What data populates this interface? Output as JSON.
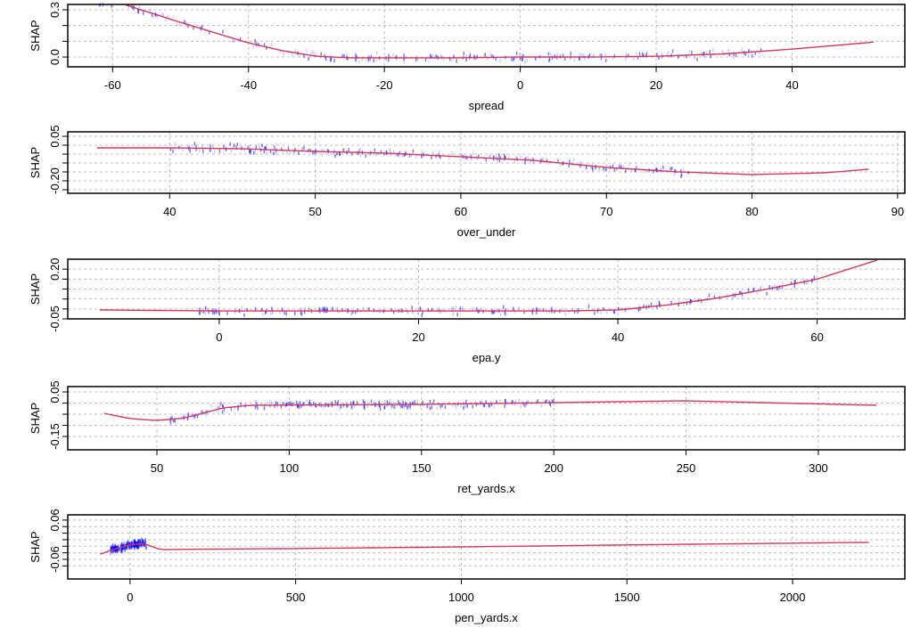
{
  "chart_data": [
    {
      "type": "scatter",
      "xlabel": "spread",
      "ylabel": "SHAP",
      "xlim": [
        -66.6,
        56.6
      ],
      "ylim": [
        -0.062,
        0.334
      ],
      "xticks": [
        -60,
        -40,
        -20,
        0,
        20,
        40
      ],
      "yticks": [
        0.0,
        0.1,
        0.2,
        0.3
      ],
      "ytick_labels": [
        {
          "v": 0.0,
          "t": "0.0"
        },
        {
          "v": 0.3,
          "t": "0.3"
        }
      ],
      "grid": true,
      "scatter_x_range": [
        -62,
        36
      ],
      "smooth": {
        "x": [
          -58,
          -50,
          -40,
          -35,
          -30,
          -25,
          -20,
          -10,
          0,
          10,
          20,
          30,
          40,
          52
        ],
        "y": [
          0.33,
          0.22,
          0.09,
          0.04,
          0.005,
          -0.005,
          -0.005,
          -0.005,
          0.0,
          0.0,
          0.005,
          0.02,
          0.05,
          0.095
        ]
      }
    },
    {
      "type": "scatter",
      "xlabel": "over_under",
      "ylabel": "SHAP",
      "xlim": [
        33.0,
        90.5
      ],
      "ylim": [
        -0.27,
        0.075
      ],
      "xticks": [
        40,
        50,
        60,
        70,
        80,
        90
      ],
      "yticks": [
        0.05,
        0.0,
        -0.05,
        -0.1,
        -0.15,
        -0.2,
        -0.25
      ],
      "ytick_labels": [
        {
          "v": 0.05,
          "t": "0.05"
        },
        {
          "v": -0.2,
          "t": "-0.20"
        }
      ],
      "grid": true,
      "scatter_x_range": [
        40,
        76
      ],
      "smooth": {
        "x": [
          35,
          40,
          45,
          50,
          55,
          60,
          65,
          70,
          75,
          80,
          85,
          88
        ],
        "y": [
          -0.015,
          -0.015,
          -0.02,
          -0.035,
          -0.045,
          -0.065,
          -0.085,
          -0.125,
          -0.15,
          -0.165,
          -0.155,
          -0.135
        ]
      }
    },
    {
      "type": "scatter",
      "xlabel": "epa.y",
      "ylabel": "SHAP",
      "xlim": [
        -15.2,
        68.8
      ],
      "ylim": [
        -0.05,
        0.25
      ],
      "xticks": [
        0,
        20,
        40,
        60
      ],
      "yticks": [
        0.2,
        0.15,
        0.1,
        0.05,
        0.0,
        -0.05
      ],
      "ytick_labels": [
        {
          "v": 0.2,
          "t": "0.20"
        },
        {
          "v": -0.05,
          "t": "-0.05"
        }
      ],
      "grid": true,
      "scatter_x_range": [
        -2,
        60
      ],
      "smooth": {
        "x": [
          -12,
          0,
          20,
          35,
          40,
          45,
          50,
          55,
          60,
          66
        ],
        "y": [
          -0.005,
          -0.01,
          -0.01,
          -0.01,
          -0.005,
          0.02,
          0.055,
          0.1,
          0.15,
          0.245
        ]
      }
    },
    {
      "type": "scatter",
      "xlabel": "ret_yards.x",
      "ylabel": "SHAP",
      "xlim": [
        16.3,
        332.7
      ],
      "ylim": [
        -0.21,
        0.074
      ],
      "xticks": [
        50,
        100,
        150,
        200,
        250,
        300
      ],
      "yticks": [
        0.05,
        0.0,
        -0.05,
        -0.1,
        -0.15
      ],
      "ytick_labels": [
        {
          "v": 0.05,
          "t": "0.05"
        },
        {
          "v": -0.15,
          "t": "-0.15"
        }
      ],
      "grid": true,
      "scatter_x_range": [
        55,
        200
      ],
      "smooth": {
        "x": [
          30,
          40,
          50,
          60,
          75,
          85,
          150,
          250,
          322
        ],
        "y": [
          -0.046,
          -0.07,
          -0.078,
          -0.068,
          -0.022,
          -0.01,
          -0.006,
          0.01,
          -0.01
        ]
      }
    },
    {
      "type": "scatter",
      "xlabel": "pen_yards.x",
      "ylabel": "SHAP",
      "xlim": [
        -188,
        2339
      ],
      "ylim": [
        -0.12,
        0.076
      ],
      "xticks": [
        0,
        500,
        1000,
        1500,
        2000
      ],
      "yticks": [
        0.06,
        0.04,
        0.02,
        0.0,
        -0.02,
        -0.04,
        -0.06,
        -0.08
      ],
      "ytick_labels": [
        {
          "v": 0.06,
          "t": "0.06"
        },
        {
          "v": -0.06,
          "t": "-0.06"
        }
      ],
      "grid": true,
      "scatter_x_range": [
        -60,
        50
      ],
      "smooth": {
        "x": [
          -90,
          -50,
          0,
          40,
          90,
          500,
          1000,
          1500,
          2230
        ],
        "y": [
          -0.044,
          -0.03,
          -0.016,
          -0.011,
          -0.03,
          -0.027,
          -0.022,
          -0.016,
          -0.008
        ]
      }
    }
  ],
  "colors": {
    "points": "#0000ff",
    "smooth": "#d6375c",
    "grid": "#bdbdbd",
    "axis": "#000000"
  }
}
